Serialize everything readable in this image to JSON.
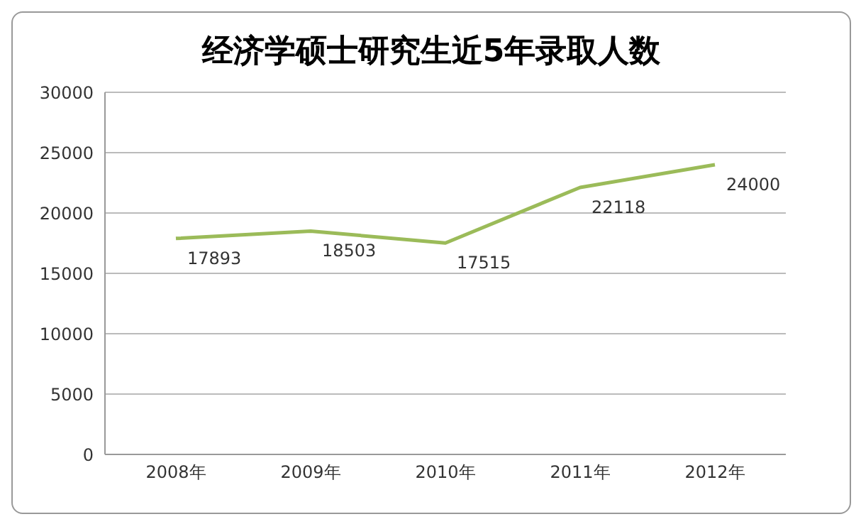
{
  "chart_data": {
    "type": "line",
    "title": "经济学硕士研究生近5年录取人数",
    "categories": [
      "2008年",
      "2009年",
      "2010年",
      "2011年",
      "2012年"
    ],
    "series": [
      {
        "color": "#9bbb59",
        "values": [
          17893,
          18503,
          17515,
          22118,
          24000
        ]
      }
    ],
    "ylim": [
      0,
      30000
    ],
    "yticks": [
      0,
      5000,
      10000,
      15000,
      20000,
      25000,
      30000
    ],
    "grid": "y",
    "data_labels": true,
    "marker": "none",
    "line_style": "solid",
    "legend": false
  }
}
